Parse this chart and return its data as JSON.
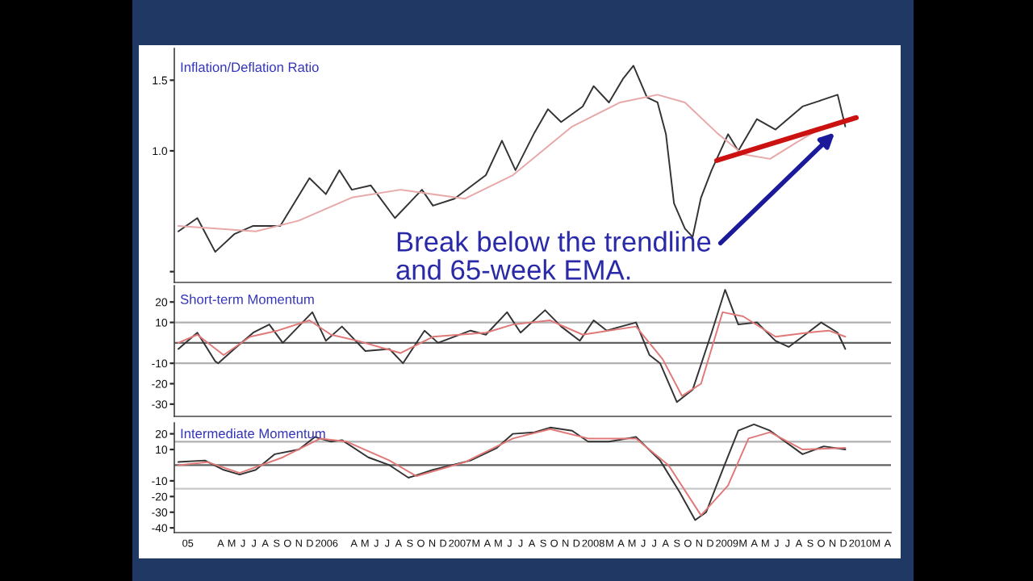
{
  "chart_data": [
    {
      "type": "line",
      "title": "Inflation/Deflation Ratio",
      "log": true,
      "tick_labels": "y",
      "xlim": [
        "2004-11-25",
        "2010-04-10"
      ],
      "ylim": [
        0.47,
        1.8
      ],
      "yticks": [
        1.5,
        {
          "value": 1,
          "label": "1.0"
        },
        {
          "value": 0.5,
          "label": null
        }
      ],
      "annotations": [
        {
          "text": "Break below the trendline\nand 65-week EMA.",
          "x": "2009-11-07",
          "y": 1.11
        }
      ],
      "series": [
        {
          "color": "#333333",
          "x": [
            "2004-12-06",
            "2005-01-27",
            "2005-03-17",
            "2005-05-08",
            "2005-06-29",
            "2005-09-11",
            "2005-11-30",
            "2006-01-14",
            "2006-02-20",
            "2006-03-26",
            "2006-05-17",
            "2006-07-22",
            "2006-10-04",
            "2006-11-03",
            "2007-01-01",
            "2007-03-28",
            "2007-05-11",
            "2007-06-17",
            "2007-08-08",
            "2007-09-14",
            "2007-10-20",
            "2007-12-18",
            "2008-01-17",
            "2008-02-28",
            "2008-04-06",
            "2008-05-05",
            "2008-06-11",
            "2008-07-10",
            "2008-08-02",
            "2008-08-24",
            "2008-09-23",
            "2008-10-14",
            "2008-11-06",
            "2008-12-05",
            "2009-01-19",
            "2009-02-16",
            "2009-04-08",
            "2009-05-29",
            "2009-08-11",
            "2009-09-24",
            "2009-11-15",
            "2009-12-06"
          ],
          "values": [
            0.63,
            0.68,
            0.56,
            0.62,
            0.65,
            0.65,
            0.855,
            0.78,
            0.895,
            0.8,
            0.82,
            0.68,
            0.8,
            0.73,
            0.76,
            0.87,
            1.06,
            0.895,
            1.11,
            1.27,
            1.18,
            1.29,
            1.45,
            1.32,
            1.51,
            1.63,
            1.36,
            1.32,
            1.1,
            0.74,
            0.64,
            0.61,
            0.765,
            0.895,
            1.1,
            1.0,
            1.2,
            1.13,
            1.29,
            1.33,
            1.38,
            1.15
          ]
        },
        {
          "color": "#e8a8a8",
          "x": [
            "2004-12-06",
            "2005-07-06",
            "2005-11-01",
            "2006-03-26",
            "2006-08-06",
            "2007-01-30",
            "2007-06-10",
            "2007-11-19",
            "2008-03-29",
            "2008-07-10",
            "2008-09-23",
            "2008-12-19",
            "2009-03-01",
            "2009-05-14",
            "2009-07-26",
            "2009-10-08",
            "2009-12-06"
          ],
          "values": [
            0.65,
            0.63,
            0.67,
            0.765,
            0.8,
            0.76,
            0.87,
            1.15,
            1.32,
            1.38,
            1.32,
            1.11,
            0.98,
            0.955,
            1.05,
            1.15,
            1.18
          ]
        },
        {
          "type": "line",
          "color": "#cc1111",
          "x": [
            "2008-12-19",
            "2010-01-05"
          ],
          "values": [
            0.946,
            1.21
          ]
        }
      ]
    },
    {
      "type": "line",
      "title": "Short-term Momentum",
      "tick_labels": "y",
      "xlim": [
        "2004-11-25",
        "2010-04-10"
      ],
      "ylim": [
        -36,
        28
      ],
      "yticks": [
        20,
        10,
        -10,
        -20,
        -30
      ],
      "ref_lines": [
        {
          "axis": "y",
          "value": 10,
          "color": "#b0b0b0"
        },
        {
          "axis": "y",
          "value": 0,
          "color": "#606060"
        },
        {
          "axis": "y",
          "value": -10,
          "color": "#b0b0b0"
        }
      ],
      "series": [
        {
          "color": "#333333",
          "x": [
            "2004-12-06",
            "2005-01-27",
            "2005-03-17",
            "2005-03-25",
            "2005-05-08",
            "2005-06-29",
            "2005-08-12",
            "2005-09-18",
            "2005-12-08",
            "2006-01-14",
            "2006-02-27",
            "2006-05-02",
            "2006-07-07",
            "2006-08-13",
            "2006-10-11",
            "2006-11-17",
            "2007-02-14",
            "2007-03-28",
            "2007-05-25",
            "2007-07-01",
            "2007-09-06",
            "2007-10-20",
            "2007-12-10",
            "2008-01-17",
            "2008-02-22",
            "2008-05-12",
            "2008-06-18",
            "2008-07-17",
            "2008-09-01",
            "2008-10-14",
            "2008-12-05",
            "2009-01-11",
            "2009-02-16",
            "2009-04-08",
            "2009-05-29",
            "2009-07-04",
            "2009-08-18",
            "2009-10-01",
            "2009-11-15",
            "2009-12-06"
          ],
          "values": [
            -3,
            5,
            -9,
            -10,
            -3,
            5,
            9,
            0,
            15,
            1,
            8,
            -4,
            -3,
            -10,
            6,
            0,
            6,
            4,
            15,
            5,
            16,
            8,
            1,
            11,
            6,
            10,
            -6,
            -10,
            -29,
            -23,
            5,
            26,
            9,
            10,
            1,
            -2,
            4,
            10,
            5,
            -3
          ]
        },
        {
          "color": "#e07878",
          "x": [
            "2004-12-06",
            "2005-01-27",
            "2005-04-09",
            "2005-06-21",
            "2005-09-04",
            "2005-11-30",
            "2006-01-28",
            "2006-04-11",
            "2006-08-06",
            "2006-11-03",
            "2007-03-28",
            "2007-06-10",
            "2007-09-20",
            "2007-12-18",
            "2008-05-12",
            "2008-07-24",
            "2008-09-15",
            "2008-11-06",
            "2009-01-04",
            "2009-03-01",
            "2009-05-29",
            "2009-08-25",
            "2009-10-22",
            "2009-12-06"
          ],
          "values": [
            0,
            4,
            -6,
            3,
            6,
            11,
            4,
            1,
            -5,
            3,
            5,
            9,
            11,
            4,
            8,
            -8,
            -26,
            -20,
            15,
            13,
            3,
            5,
            6,
            3
          ]
        }
      ]
    },
    {
      "type": "line",
      "title": "Intermediate Momentum",
      "xlim": [
        "2004-11-25",
        "2010-04-10"
      ],
      "ylim": [
        -43,
        27
      ],
      "yticks": [
        20,
        10,
        -10,
        -20,
        -30,
        -40
      ],
      "xticks": [
        {
          "value": "2005-01-01",
          "label": "05"
        },
        {
          "value": "2005-04-01",
          "label": "A"
        },
        {
          "value": "2005-05-01",
          "label": "M"
        },
        {
          "value": "2005-06-01",
          "label": "J"
        },
        {
          "value": "2005-07-01",
          "label": "J"
        },
        {
          "value": "2005-08-01",
          "label": "A"
        },
        {
          "value": "2005-09-01",
          "label": "S"
        },
        {
          "value": "2005-10-01",
          "label": "O"
        },
        {
          "value": "2005-11-01",
          "label": "N"
        },
        {
          "value": "2005-12-01",
          "label": "D"
        },
        {
          "value": "2006-01-16",
          "label": "2006"
        },
        {
          "value": "2006-04-01",
          "label": "A"
        },
        {
          "value": "2006-05-01",
          "label": "M"
        },
        {
          "value": "2006-06-01",
          "label": "J"
        },
        {
          "value": "2006-07-01",
          "label": "J"
        },
        {
          "value": "2006-08-01",
          "label": "A"
        },
        {
          "value": "2006-09-01",
          "label": "S"
        },
        {
          "value": "2006-10-01",
          "label": "O"
        },
        {
          "value": "2006-11-01",
          "label": "N"
        },
        {
          "value": "2006-12-01",
          "label": "D"
        },
        {
          "value": "2007-01-16",
          "label": "2007"
        },
        {
          "value": "2007-03-01",
          "label": "M"
        },
        {
          "value": "2007-04-01",
          "label": "A"
        },
        {
          "value": "2007-05-01",
          "label": "M"
        },
        {
          "value": "2007-06-01",
          "label": "J"
        },
        {
          "value": "2007-07-01",
          "label": "J"
        },
        {
          "value": "2007-08-01",
          "label": "A"
        },
        {
          "value": "2007-09-01",
          "label": "S"
        },
        {
          "value": "2007-10-01",
          "label": "O"
        },
        {
          "value": "2007-11-01",
          "label": "N"
        },
        {
          "value": "2007-12-01",
          "label": "D"
        },
        {
          "value": "2008-01-16",
          "label": "2008"
        },
        {
          "value": "2008-03-01",
          "label": "M"
        },
        {
          "value": "2008-04-01",
          "label": "A"
        },
        {
          "value": "2008-05-01",
          "label": "M"
        },
        {
          "value": "2008-06-01",
          "label": "J"
        },
        {
          "value": "2008-07-01",
          "label": "J"
        },
        {
          "value": "2008-08-01",
          "label": "A"
        },
        {
          "value": "2008-09-01",
          "label": "S"
        },
        {
          "value": "2008-10-01",
          "label": "O"
        },
        {
          "value": "2008-11-01",
          "label": "N"
        },
        {
          "value": "2008-12-01",
          "label": "D"
        },
        {
          "value": "2009-01-16",
          "label": "2009"
        },
        {
          "value": "2009-03-01",
          "label": "M"
        },
        {
          "value": "2009-04-01",
          "label": "A"
        },
        {
          "value": "2009-05-01",
          "label": "M"
        },
        {
          "value": "2009-06-01",
          "label": "J"
        },
        {
          "value": "2009-07-01",
          "label": "J"
        },
        {
          "value": "2009-08-01",
          "label": "A"
        },
        {
          "value": "2009-09-01",
          "label": "S"
        },
        {
          "value": "2009-10-01",
          "label": "O"
        },
        {
          "value": "2009-11-01",
          "label": "N"
        },
        {
          "value": "2009-12-01",
          "label": "D"
        },
        {
          "value": "2010-01-16",
          "label": "2010"
        },
        {
          "value": "2010-03-01",
          "label": "M"
        },
        {
          "value": "2010-04-01",
          "label": "A"
        }
      ],
      "ref_lines": [
        {
          "axis": "y",
          "value": 15,
          "color": "#b0b0b0"
        },
        {
          "axis": "y",
          "value": 0,
          "color": "#606060"
        },
        {
          "axis": "y",
          "value": -15,
          "color": "#c8c8c8"
        }
      ],
      "series": [
        {
          "color": "#333333",
          "x": [
            "2004-12-06",
            "2005-02-17",
            "2005-04-09",
            "2005-05-23",
            "2005-07-06",
            "2005-08-27",
            "2005-11-01",
            "2005-12-15",
            "2006-01-28",
            "2006-02-27",
            "2006-05-10",
            "2006-07-07",
            "2006-08-28",
            "2006-11-03",
            "2007-02-14",
            "2007-04-27",
            "2007-06-10",
            "2007-08-08",
            "2007-09-20",
            "2007-11-19",
            "2008-01-02",
            "2008-02-28",
            "2008-05-12",
            "2008-07-17",
            "2008-09-08",
            "2008-10-21",
            "2008-11-20",
            "2009-01-04",
            "2009-02-16",
            "2009-03-31",
            "2009-05-14",
            "2009-08-11",
            "2009-10-08",
            "2009-12-06"
          ],
          "values": [
            2,
            3,
            -3,
            -6,
            -3,
            7,
            10,
            18,
            15,
            16,
            5,
            0,
            -8,
            -3,
            3,
            11,
            20,
            21,
            24,
            22,
            15,
            15,
            18,
            3,
            -17,
            -35,
            -30,
            -3,
            22,
            26,
            22,
            7,
            12,
            10
          ]
        },
        {
          "color": "#e07878",
          "x": [
            "2004-12-06",
            "2005-02-24",
            "2005-05-23",
            "2005-09-18",
            "2005-12-30",
            "2006-03-12",
            "2006-07-07",
            "2006-09-19",
            "2007-01-30",
            "2007-06-10",
            "2007-09-20",
            "2008-01-02",
            "2008-05-12",
            "2008-08-09",
            "2008-11-06",
            "2009-01-19",
            "2009-03-16",
            "2009-05-14",
            "2009-08-11",
            "2009-12-06"
          ],
          "values": [
            0,
            2,
            -5,
            5,
            17,
            15,
            3,
            -7,
            2,
            17,
            23,
            17,
            17,
            0,
            -32,
            -13,
            17,
            21,
            10,
            11
          ]
        }
      ]
    }
  ]
}
